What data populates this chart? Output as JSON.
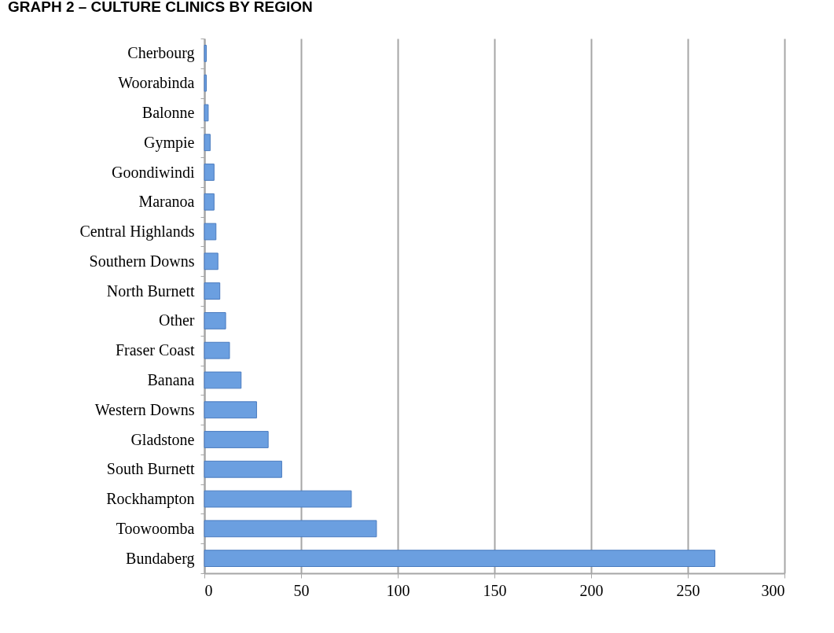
{
  "chart_data": {
    "type": "bar",
    "orientation": "horizontal",
    "title": "GRAPH 2 – CULTURE CLINICS BY REGION",
    "categories": [
      "Cherbourg",
      "Woorabinda",
      "Balonne",
      "Gympie",
      "Goondiwindi",
      "Maranoa",
      "Central Highlands",
      "Southern Downs",
      "North Burnett",
      "Other",
      "Fraser Coast",
      "Banana",
      "Western Downs",
      "Gladstone",
      "South Burnett",
      "Rockhampton",
      "Toowoomba",
      "Bundaberg"
    ],
    "values": [
      1,
      1,
      2,
      3,
      5,
      5,
      6,
      7,
      8,
      11,
      13,
      19,
      27,
      33,
      40,
      76,
      89,
      264
    ],
    "color": "#6b9fe0",
    "xlim": [
      0,
      300
    ],
    "xticks": [
      0,
      50,
      100,
      150,
      200,
      250,
      300
    ],
    "grid": "x"
  }
}
